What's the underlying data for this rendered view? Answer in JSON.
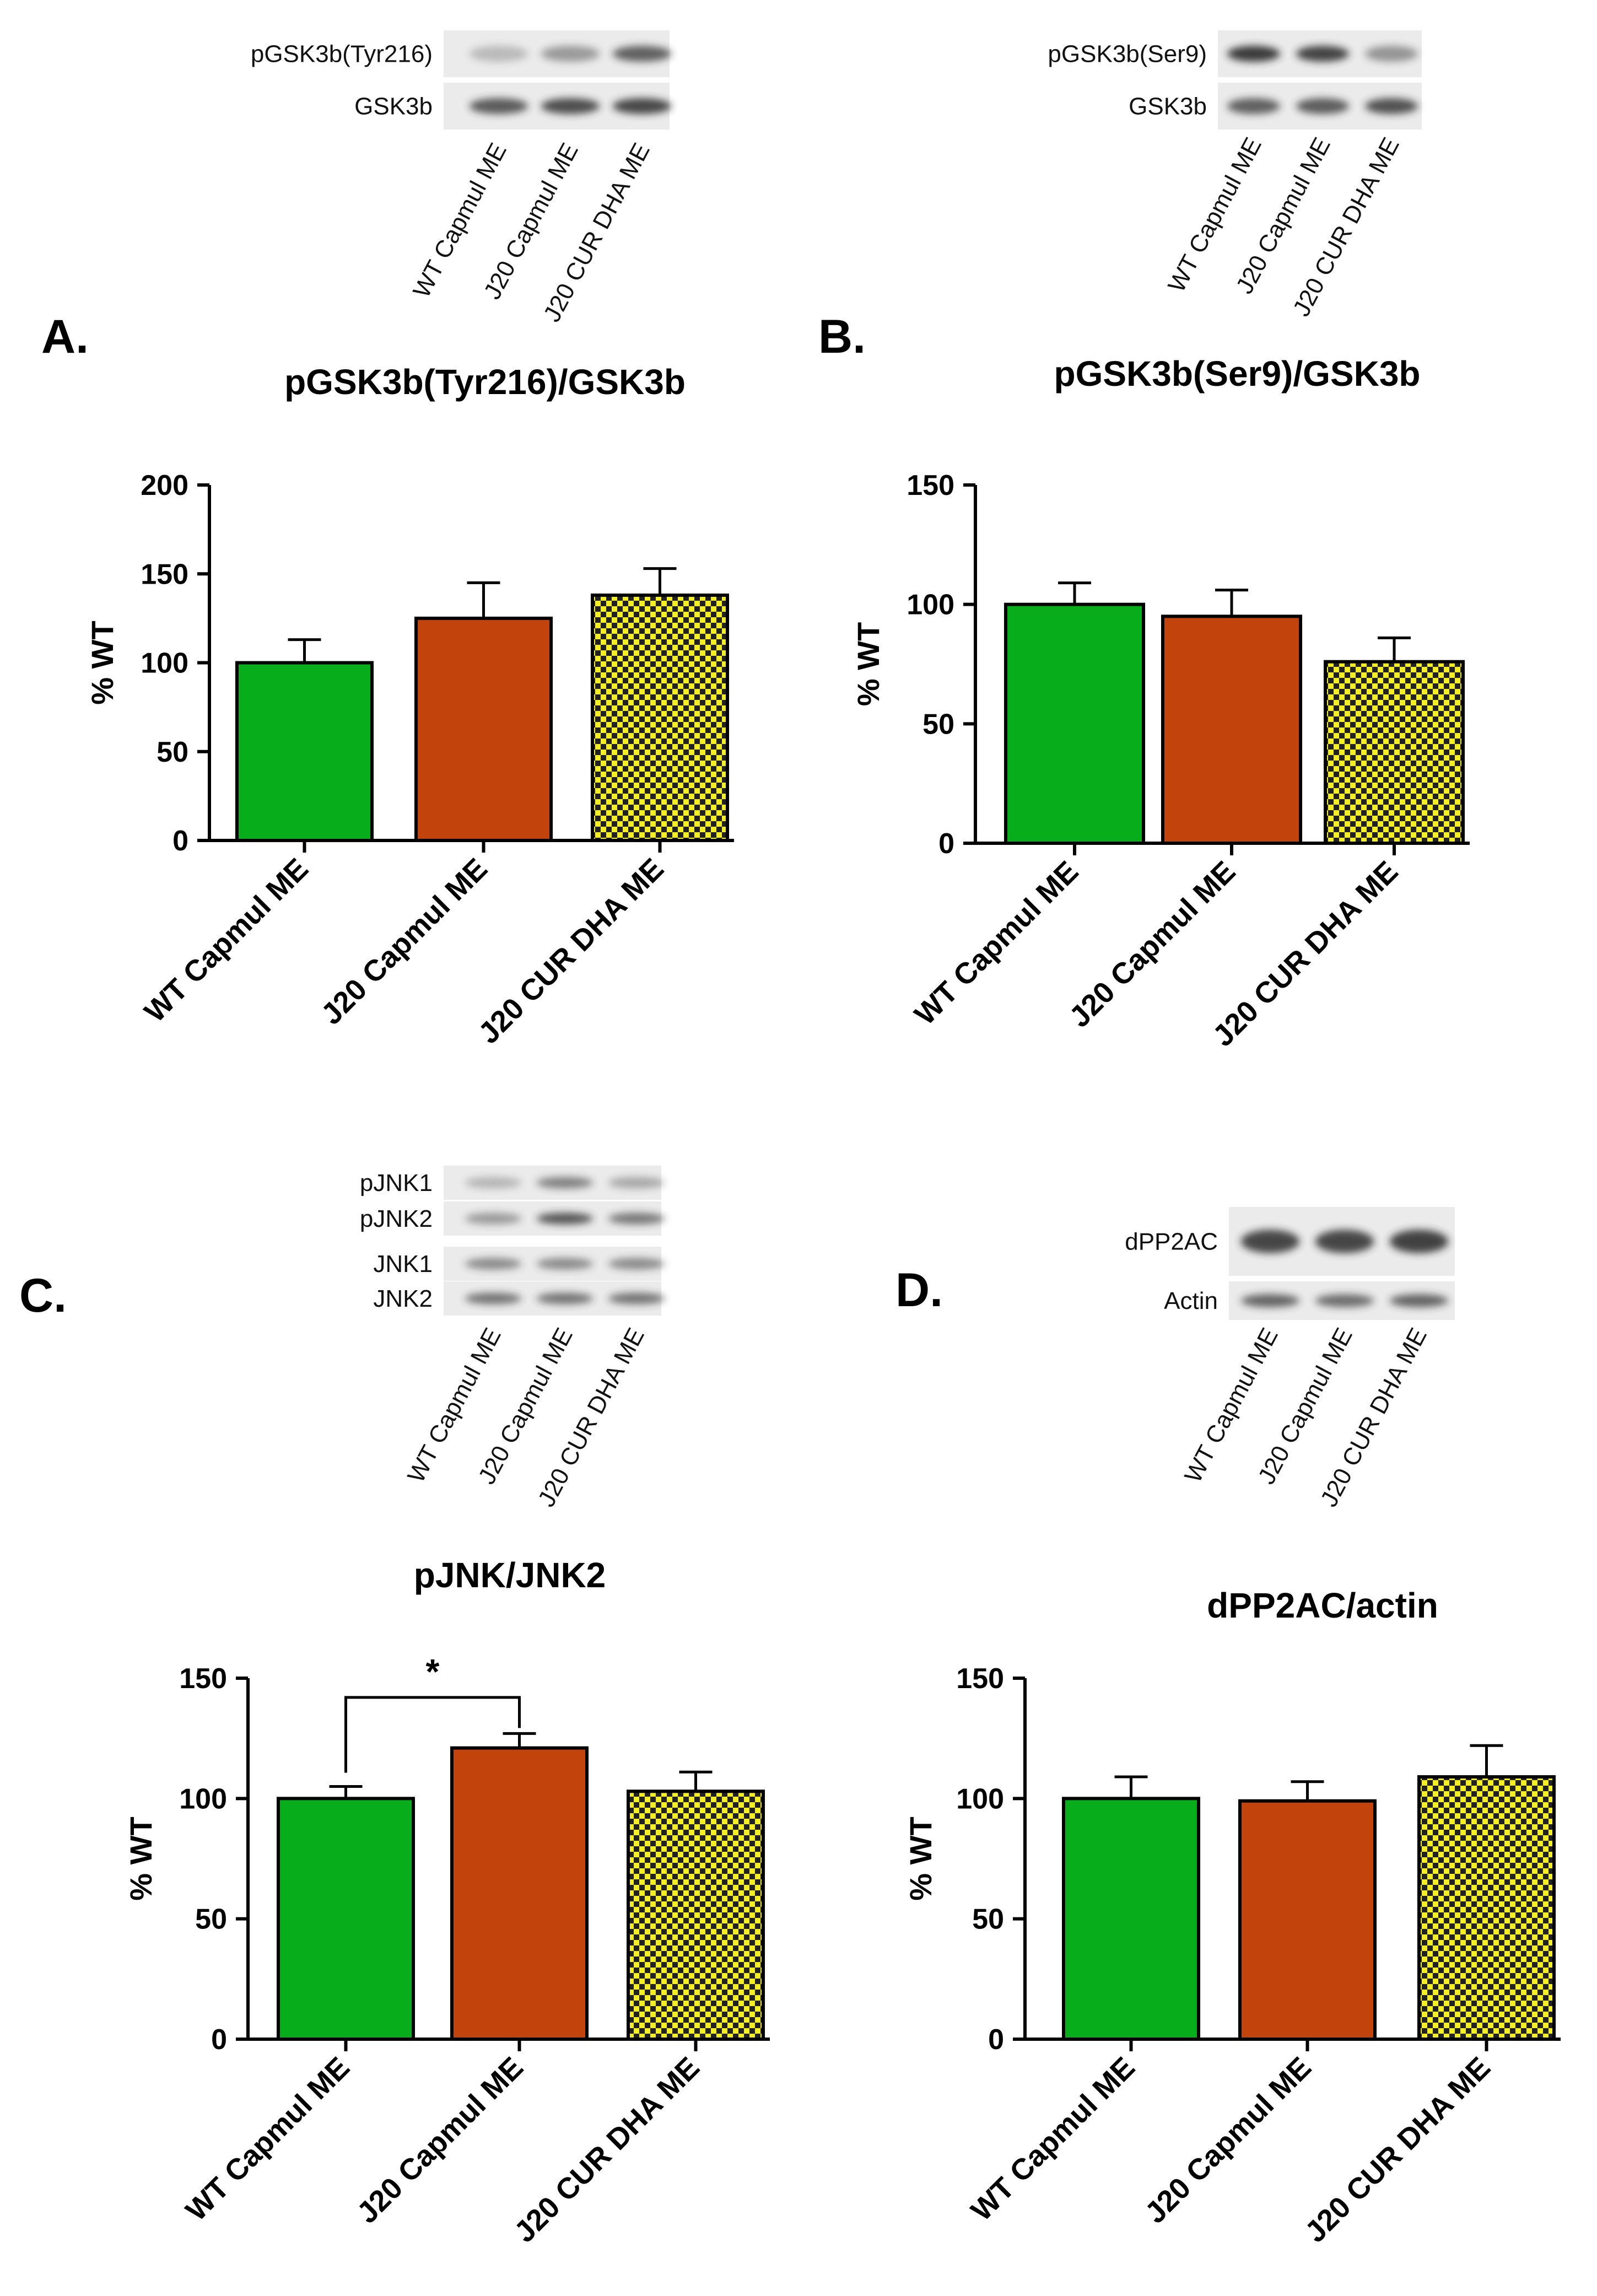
{
  "colors": {
    "green": "#07ad1a",
    "orange": "#c2440c",
    "yellow": "#f4ee27",
    "check": "#222222",
    "band": "#2a2a2a",
    "blot_bg": "#ebebeb"
  },
  "blots": [
    {
      "id": "A",
      "rows": [
        {
          "label": "pGSK3b(Tyr216)",
          "intensity": [
            0.25,
            0.42,
            0.72
          ]
        },
        {
          "label": "GSK3b",
          "intensity": [
            0.75,
            0.82,
            0.85
          ]
        }
      ],
      "lanes": [
        "WT Capmul ME",
        "J20 Capmul ME",
        "J20 CUR DHA ME"
      ]
    },
    {
      "id": "B",
      "rows": [
        {
          "label": "pGSK3b(Ser9)",
          "intensity": [
            0.92,
            0.88,
            0.45
          ]
        },
        {
          "label": "GSK3b",
          "intensity": [
            0.72,
            0.74,
            0.8
          ]
        }
      ],
      "lanes": [
        "WT Capmul ME",
        "J20 Capmul ME",
        "J20 CUR DHA ME"
      ]
    },
    {
      "id": "C",
      "rows": [
        {
          "label": "pJNK1",
          "intensity": [
            0.28,
            0.55,
            0.35
          ]
        },
        {
          "label": "pJNK2",
          "intensity": [
            0.42,
            0.78,
            0.6
          ]
        },
        {
          "label": "JNK1",
          "intensity": [
            0.5,
            0.5,
            0.5
          ]
        },
        {
          "label": "JNK2",
          "intensity": [
            0.62,
            0.62,
            0.62
          ]
        }
      ],
      "lanes": [
        "WT Capmul ME",
        "J20 Capmul ME",
        "J20 CUR DHA ME"
      ]
    },
    {
      "id": "D",
      "rows": [
        {
          "label": "dPP2AC",
          "intensity": [
            0.85,
            0.85,
            0.88
          ]
        },
        {
          "label": "Actin",
          "intensity": [
            0.7,
            0.65,
            0.7
          ]
        }
      ],
      "lanes": [
        "WT Capmul ME",
        "J20 Capmul ME",
        "J20 CUR DHA ME"
      ]
    }
  ],
  "chart_data": [
    {
      "panel": "A.",
      "type": "bar",
      "title": "pGSK3b(Tyr216)/GSK3b",
      "ylabel": "% WT",
      "xlabel": "",
      "categories": [
        "WT Capmul ME",
        "J20 Capmul ME",
        "J20 CUR DHA ME"
      ],
      "values": [
        100,
        125,
        138
      ],
      "errors": [
        13,
        20,
        15
      ],
      "fills": [
        "green",
        "orange",
        "checker"
      ],
      "ylim": [
        0,
        200
      ],
      "yticks": [
        0,
        50,
        100,
        150,
        200
      ],
      "significance": []
    },
    {
      "panel": "B.",
      "type": "bar",
      "title": "pGSK3b(Ser9)/GSK3b",
      "ylabel": "% WT",
      "xlabel": "",
      "categories": [
        "WT Capmul ME",
        "J20 Capmul ME",
        "J20 CUR DHA ME"
      ],
      "values": [
        100,
        95,
        76
      ],
      "errors": [
        9,
        11,
        10
      ],
      "fills": [
        "green",
        "orange",
        "checker"
      ],
      "ylim": [
        0,
        150
      ],
      "yticks": [
        0,
        50,
        100,
        150
      ],
      "significance": []
    },
    {
      "panel": "C.",
      "type": "bar",
      "title": "pJNK/JNK2",
      "ylabel": "% WT",
      "xlabel": "",
      "categories": [
        "WT Capmul ME",
        "J20 Capmul ME",
        "J20 CUR DHA ME"
      ],
      "values": [
        100,
        121,
        103
      ],
      "errors": [
        5,
        6,
        8
      ],
      "fills": [
        "green",
        "orange",
        "checker"
      ],
      "ylim": [
        0,
        150
      ],
      "yticks": [
        0,
        50,
        100,
        150
      ],
      "significance": [
        {
          "from": 0,
          "to": 1,
          "label": "*",
          "level": 142
        }
      ]
    },
    {
      "panel": "D.",
      "type": "bar",
      "title": "dPP2AC/actin",
      "ylabel": "% WT",
      "xlabel": "",
      "categories": [
        "WT Capmul ME",
        "J20 Capmul ME",
        "J20 CUR DHA ME"
      ],
      "values": [
        100,
        99,
        109
      ],
      "errors": [
        9,
        8,
        13
      ],
      "fills": [
        "green",
        "orange",
        "checker"
      ],
      "ylim": [
        0,
        150
      ],
      "yticks": [
        0,
        50,
        100,
        150
      ],
      "significance": []
    }
  ]
}
